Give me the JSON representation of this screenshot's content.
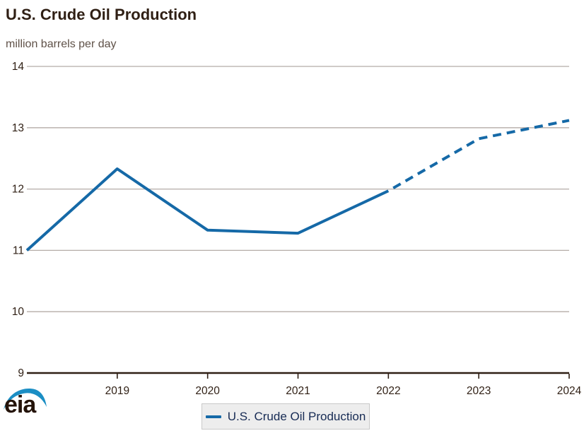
{
  "header": {
    "title": "U.S. Crude Oil Production",
    "subtitle": "million barrels per day"
  },
  "legend": {
    "label": "U.S. Crude Oil Production"
  },
  "logo": {
    "text": "eia"
  },
  "colors": {
    "line": "#1569a7",
    "logo_blue": "#1b8ec4",
    "grid": "#b4aca7",
    "axis": "#2f1f14",
    "tick_text": "#2f1f14",
    "subtitle_text": "#5f5148",
    "legend_text": "#172b54",
    "legend_bg": "#ededed",
    "legend_border": "#c9c9c9"
  },
  "chart_data": {
    "type": "line",
    "title": "U.S. Crude Oil Production",
    "ylabel": "million barrels per day",
    "x": [
      2018,
      2019,
      2020,
      2021,
      2022,
      2023,
      2024
    ],
    "series": [
      {
        "name": "U.S. Crude Oil Production",
        "values": [
          11.0,
          12.33,
          11.33,
          11.28,
          11.97,
          12.82,
          13.12
        ],
        "dashed_from_x": 2022,
        "note": "solid line through 2022, dashed forecast 2022-2024"
      }
    ],
    "y_ticks": [
      9,
      10,
      11,
      12,
      13,
      14
    ],
    "x_tick_labels": [
      "2019",
      "2020",
      "2021",
      "2022",
      "2023",
      "2024"
    ],
    "ylim": [
      9,
      14
    ],
    "xlim": [
      2018,
      2024
    ],
    "grid": "horizontal gridlines only",
    "legend_position": "bottom-center"
  }
}
